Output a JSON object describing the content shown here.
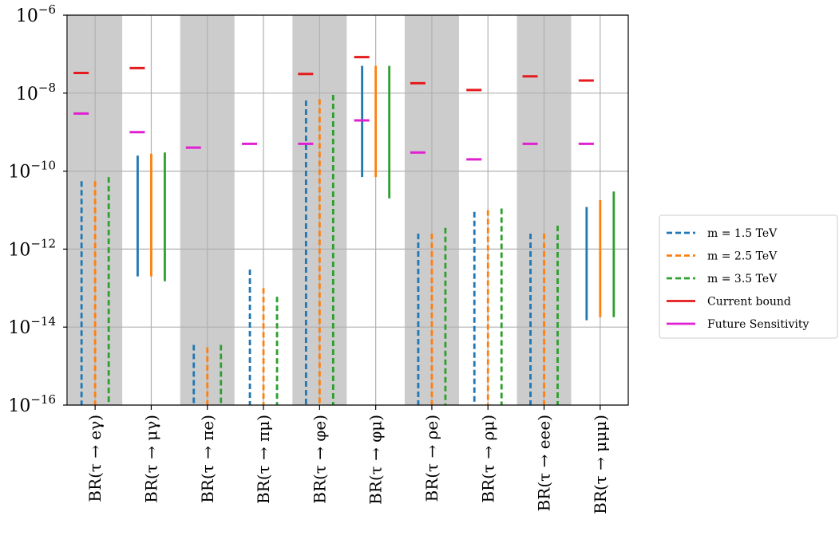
{
  "chart_data": {
    "type": "bar",
    "title": "",
    "xlabel": "",
    "ylabel": "",
    "yscale": "log",
    "ylim": [
      1e-16,
      1e-06
    ],
    "y_tick_exponents": [
      -16,
      -14,
      -12,
      -10,
      -8,
      -6
    ],
    "y_tick_base": "10",
    "grid": true,
    "categories": [
      "BR(τ → eγ)",
      "BR(τ → μγ)",
      "BR(τ → πe)",
      "BR(τ → πμ)",
      "BR(τ → φe)",
      "BR(τ → φμ)",
      "BR(τ → ρe)",
      "BR(τ → ρμ)",
      "BR(τ → eee)",
      "BR(τ → μμμ)"
    ],
    "shaded_categories": [
      true,
      false,
      true,
      false,
      true,
      false,
      true,
      false,
      true,
      false
    ],
    "series": [
      {
        "name": "m = 1.5 TeV",
        "color": "#1f77b4",
        "ranges": [
          {
            "low": 1e-16,
            "high": 5.5e-11,
            "style": "dashed"
          },
          {
            "low": 2e-13,
            "high": 2.5e-10,
            "style": "solid"
          },
          {
            "low": 1e-16,
            "high": 3.5e-15,
            "style": "dashed"
          },
          {
            "low": 1e-16,
            "high": 3e-13,
            "style": "dashed"
          },
          {
            "low": 1e-16,
            "high": 6.5e-09,
            "style": "dashed"
          },
          {
            "low": 7e-11,
            "high": 5e-08,
            "style": "solid"
          },
          {
            "low": 1e-16,
            "high": 2.5e-12,
            "style": "dashed"
          },
          {
            "low": 1e-16,
            "high": 9e-12,
            "style": "dashed"
          },
          {
            "low": 1e-16,
            "high": 2.5e-12,
            "style": "dashed"
          },
          {
            "low": 1.5e-14,
            "high": 1.2e-11,
            "style": "solid"
          }
        ]
      },
      {
        "name": "m = 2.5 TeV",
        "color": "#ff7f0e",
        "ranges": [
          {
            "low": 1e-16,
            "high": 5.5e-11,
            "style": "dashed"
          },
          {
            "low": 2e-13,
            "high": 2.8e-10,
            "style": "solid"
          },
          {
            "low": 1e-16,
            "high": 3e-15,
            "style": "dashed"
          },
          {
            "low": 1e-16,
            "high": 1e-13,
            "style": "dashed"
          },
          {
            "low": 1e-16,
            "high": 7e-09,
            "style": "dashed"
          },
          {
            "low": 7e-11,
            "high": 5e-08,
            "style": "solid"
          },
          {
            "low": 1e-16,
            "high": 2.5e-12,
            "style": "dashed"
          },
          {
            "low": 1e-16,
            "high": 1e-11,
            "style": "dashed"
          },
          {
            "low": 1e-16,
            "high": 2.5e-12,
            "style": "dashed"
          },
          {
            "low": 1.8e-14,
            "high": 1.8e-11,
            "style": "solid"
          }
        ]
      },
      {
        "name": "m = 3.5 TeV",
        "color": "#2ca02c",
        "ranges": [
          {
            "low": 1e-16,
            "high": 7e-11,
            "style": "dashed"
          },
          {
            "low": 1.5e-13,
            "high": 3e-10,
            "style": "solid"
          },
          {
            "low": 1e-16,
            "high": 3.5e-15,
            "style": "dashed"
          },
          {
            "low": 1e-16,
            "high": 6e-14,
            "style": "dashed"
          },
          {
            "low": 1e-16,
            "high": 9e-09,
            "style": "dashed"
          },
          {
            "low": 2e-11,
            "high": 5e-08,
            "style": "solid"
          },
          {
            "low": 1e-16,
            "high": 3.5e-12,
            "style": "dashed"
          },
          {
            "low": 1e-16,
            "high": 1.1e-11,
            "style": "dashed"
          },
          {
            "low": 1e-16,
            "high": 4e-12,
            "style": "dashed"
          },
          {
            "low": 1.8e-14,
            "high": 3e-11,
            "style": "solid"
          }
        ]
      }
    ],
    "current_bound": {
      "name": "Current bound",
      "color": "#e41a1c",
      "values": [
        3.3e-08,
        4.4e-08,
        null,
        null,
        3.1e-08,
        8.4e-08,
        1.8e-08,
        1.2e-08,
        2.7e-08,
        2.1e-08
      ]
    },
    "future_sensitivity": {
      "name": "Future Sensitivity",
      "color": "#e01fd1",
      "values": [
        3e-09,
        1e-09,
        4e-10,
        5e-10,
        5e-10,
        2e-09,
        3e-10,
        2e-10,
        5e-10,
        5e-10
      ]
    },
    "legend": {
      "location": "center-right",
      "entries": [
        {
          "label": "m = 1.5 TeV",
          "style": "dashed",
          "color": "#1f77b4"
        },
        {
          "label": "m = 2.5 TeV",
          "style": "dashed",
          "color": "#ff7f0e"
        },
        {
          "label": "m = 3.5 TeV",
          "style": "dashed",
          "color": "#2ca02c"
        },
        {
          "label": "Current bound",
          "style": "solid",
          "color": "#e41a1c"
        },
        {
          "label": "Future Sensitivity",
          "style": "solid",
          "color": "#e01fd1"
        }
      ]
    },
    "shade_color": "#cccccc",
    "grid_color": "#b0b0b0"
  }
}
